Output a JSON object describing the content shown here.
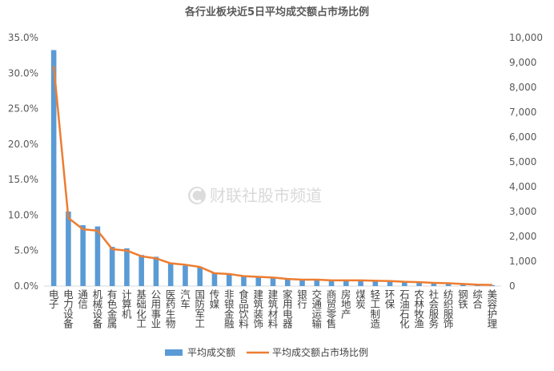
{
  "chart_data": {
    "type": "bar",
    "title": "各行业板块近5日平均成交额占市场比例",
    "watermark": "财联社股市频道",
    "categories": [
      "电子",
      "电力设备",
      "通信",
      "机械设备",
      "有色金属",
      "计算机",
      "基础化工",
      "公用事业",
      "医药生物",
      "汽车",
      "国防军工",
      "传媒",
      "非银金融",
      "食品饮料",
      "建筑装饰",
      "建筑材料",
      "家用电器",
      "银行",
      "交通运输",
      "商贸零售",
      "房地产",
      "煤炭",
      "轻工制造",
      "环保",
      "石油石化",
      "农林牧渔",
      "社会服务",
      "纺织服饰",
      "钢铁",
      "综合",
      "美容护理"
    ],
    "series": [
      {
        "name": "平均成交额",
        "type": "bar",
        "axis": "right",
        "color": "#5b9bd5",
        "values": [
          9500,
          3000,
          2450,
          2400,
          1580,
          1520,
          1250,
          1180,
          950,
          820,
          760,
          520,
          470,
          420,
          390,
          340,
          300,
          270,
          250,
          230,
          220,
          210,
          200,
          190,
          170,
          160,
          130,
          120,
          90,
          60,
          40
        ]
      },
      {
        "name": "平均成交额占市场比例",
        "type": "line",
        "axis": "left",
        "color": "#ed7d31",
        "values": [
          31.0,
          9.6,
          8.0,
          7.8,
          5.2,
          5.0,
          4.2,
          3.9,
          3.2,
          3.0,
          2.7,
          1.8,
          1.7,
          1.4,
          1.3,
          1.2,
          1.0,
          0.9,
          0.9,
          0.8,
          0.8,
          0.8,
          0.75,
          0.7,
          0.6,
          0.55,
          0.45,
          0.4,
          0.3,
          0.2,
          0.15
        ]
      }
    ],
    "y_left": {
      "min": 0,
      "max": 35,
      "step": 5,
      "tick_labels": [
        "0.0%",
        "5.0%",
        "10.0%",
        "15.0%",
        "20.0%",
        "25.0%",
        "30.0%",
        "35.0%"
      ]
    },
    "y_right": {
      "min": 0,
      "max": 10000,
      "step": 1000,
      "tick_labels": [
        "0",
        "1,000",
        "2,000",
        "3,000",
        "4,000",
        "5,000",
        "6,000",
        "7,000",
        "8,000",
        "9,000",
        "10,000"
      ]
    },
    "legend": {
      "position": "bottom"
    },
    "grid": false
  }
}
